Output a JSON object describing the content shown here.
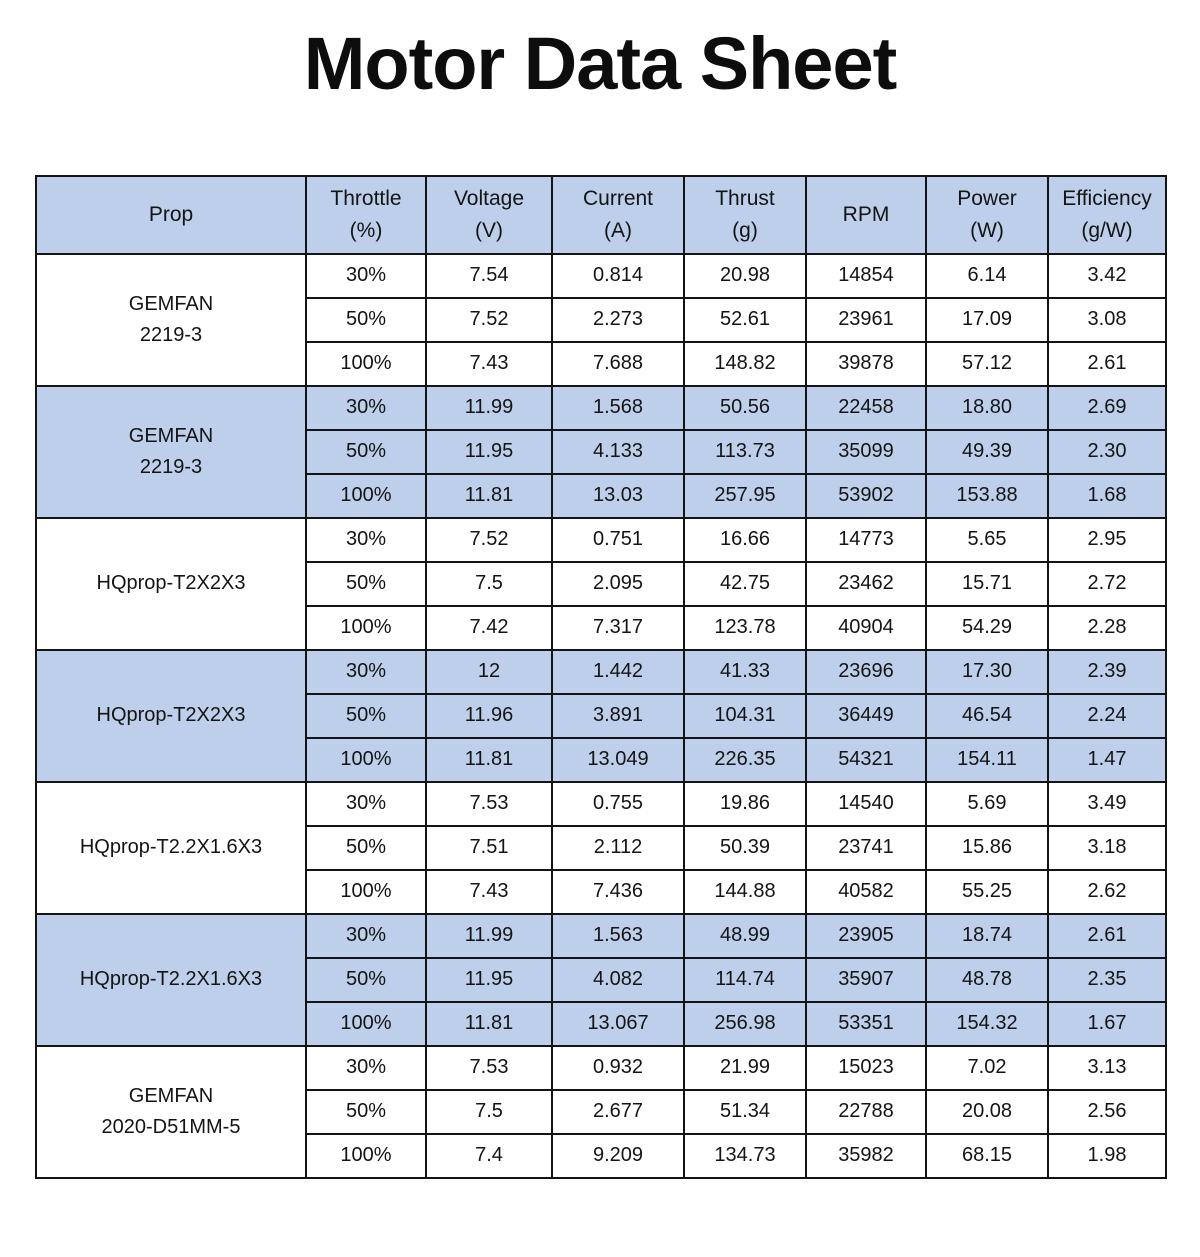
{
  "title": "Motor Data Sheet",
  "colors": {
    "band_blue": "#bdcfea",
    "band_white": "#ffffff",
    "border": "#141414",
    "text": "#141414"
  },
  "table": {
    "columns": [
      {
        "label": "Prop",
        "unit": ""
      },
      {
        "label": "Throttle",
        "unit": "(%)"
      },
      {
        "label": "Voltage",
        "unit": "(V)"
      },
      {
        "label": "Current",
        "unit": "(A)"
      },
      {
        "label": "Thrust",
        "unit": "(g)"
      },
      {
        "label": "RPM",
        "unit": ""
      },
      {
        "label": "Power",
        "unit": "(W)"
      },
      {
        "label": "Efficiency",
        "unit": "(g/W)"
      }
    ],
    "groups": [
      {
        "prop": [
          "GEMFAN",
          "2219-3"
        ],
        "shaded": false,
        "rows": [
          [
            "30%",
            "7.54",
            "0.814",
            "20.98",
            "14854",
            "6.14",
            "3.42"
          ],
          [
            "50%",
            "7.52",
            "2.273",
            "52.61",
            "23961",
            "17.09",
            "3.08"
          ],
          [
            "100%",
            "7.43",
            "7.688",
            "148.82",
            "39878",
            "57.12",
            "2.61"
          ]
        ]
      },
      {
        "prop": [
          "GEMFAN",
          "2219-3"
        ],
        "shaded": true,
        "rows": [
          [
            "30%",
            "11.99",
            "1.568",
            "50.56",
            "22458",
            "18.80",
            "2.69"
          ],
          [
            "50%",
            "11.95",
            "4.133",
            "113.73",
            "35099",
            "49.39",
            "2.30"
          ],
          [
            "100%",
            "11.81",
            "13.03",
            "257.95",
            "53902",
            "153.88",
            "1.68"
          ]
        ]
      },
      {
        "prop": [
          "HQprop-T2X2X3"
        ],
        "shaded": false,
        "rows": [
          [
            "30%",
            "7.52",
            "0.751",
            "16.66",
            "14773",
            "5.65",
            "2.95"
          ],
          [
            "50%",
            "7.5",
            "2.095",
            "42.75",
            "23462",
            "15.71",
            "2.72"
          ],
          [
            "100%",
            "7.42",
            "7.317",
            "123.78",
            "40904",
            "54.29",
            "2.28"
          ]
        ]
      },
      {
        "prop": [
          "HQprop-T2X2X3"
        ],
        "shaded": true,
        "rows": [
          [
            "30%",
            "12",
            "1.442",
            "41.33",
            "23696",
            "17.30",
            "2.39"
          ],
          [
            "50%",
            "11.96",
            "3.891",
            "104.31",
            "36449",
            "46.54",
            "2.24"
          ],
          [
            "100%",
            "11.81",
            "13.049",
            "226.35",
            "54321",
            "154.11",
            "1.47"
          ]
        ]
      },
      {
        "prop": [
          "HQprop-T2.2X1.6X3"
        ],
        "shaded": false,
        "rows": [
          [
            "30%",
            "7.53",
            "0.755",
            "19.86",
            "14540",
            "5.69",
            "3.49"
          ],
          [
            "50%",
            "7.51",
            "2.112",
            "50.39",
            "23741",
            "15.86",
            "3.18"
          ],
          [
            "100%",
            "7.43",
            "7.436",
            "144.88",
            "40582",
            "55.25",
            "2.62"
          ]
        ]
      },
      {
        "prop": [
          "HQprop-T2.2X1.6X3"
        ],
        "shaded": true,
        "rows": [
          [
            "30%",
            "11.99",
            "1.563",
            "48.99",
            "23905",
            "18.74",
            "2.61"
          ],
          [
            "50%",
            "11.95",
            "4.082",
            "114.74",
            "35907",
            "48.78",
            "2.35"
          ],
          [
            "100%",
            "11.81",
            "13.067",
            "256.98",
            "53351",
            "154.32",
            "1.67"
          ]
        ]
      },
      {
        "prop": [
          "GEMFAN",
          "2020-D51MM-5"
        ],
        "shaded": false,
        "rows": [
          [
            "30%",
            "7.53",
            "0.932",
            "21.99",
            "15023",
            "7.02",
            "3.13"
          ],
          [
            "50%",
            "7.5",
            "2.677",
            "51.34",
            "22788",
            "20.08",
            "2.56"
          ],
          [
            "100%",
            "7.4",
            "9.209",
            "134.73",
            "35982",
            "68.15",
            "1.98"
          ]
        ]
      }
    ]
  }
}
